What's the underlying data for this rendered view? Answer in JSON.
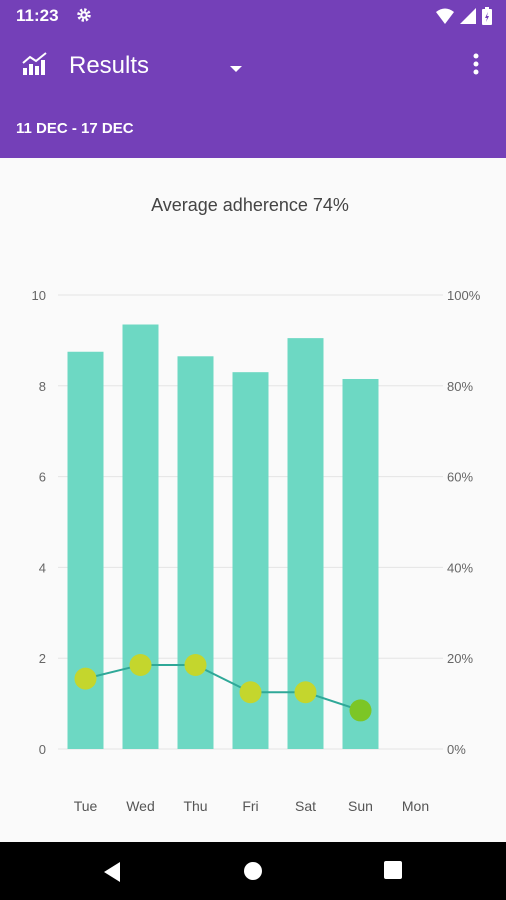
{
  "status_bar": {
    "time": "11:23"
  },
  "app_bar": {
    "title": "Results",
    "date_range": "11 DEC - 17 DEC"
  },
  "chart_data": {
    "type": "bar",
    "title": "Average adherence 74%",
    "categories": [
      "Tue",
      "Wed",
      "Thu",
      "Fri",
      "Sat",
      "Sun",
      "Mon"
    ],
    "series": [
      {
        "values": [
          8.75,
          9.35,
          8.65,
          8.3,
          9.05,
          8.15,
          null
        ],
        "axis": "left",
        "color": "#6dd8c3",
        "type": "bar"
      },
      {
        "values": [
          15.5,
          18.5,
          18.5,
          12.5,
          12.5,
          8.5,
          null
        ],
        "axis": "right",
        "color": "#2fa898",
        "type": "line",
        "point_colors": [
          "#c4d62d",
          "#c4d62d",
          "#c4d62d",
          "#c4d62d",
          "#c4d62d",
          "#7cc626",
          null
        ]
      }
    ],
    "left_axis": {
      "min": 0,
      "max": 10,
      "ticks": [
        "0",
        "2",
        "4",
        "6",
        "8",
        "10"
      ]
    },
    "right_axis": {
      "min": 0,
      "max": 100,
      "ticks": [
        "0%",
        "20%",
        "40%",
        "60%",
        "80%",
        "100%"
      ]
    },
    "grid": true
  }
}
